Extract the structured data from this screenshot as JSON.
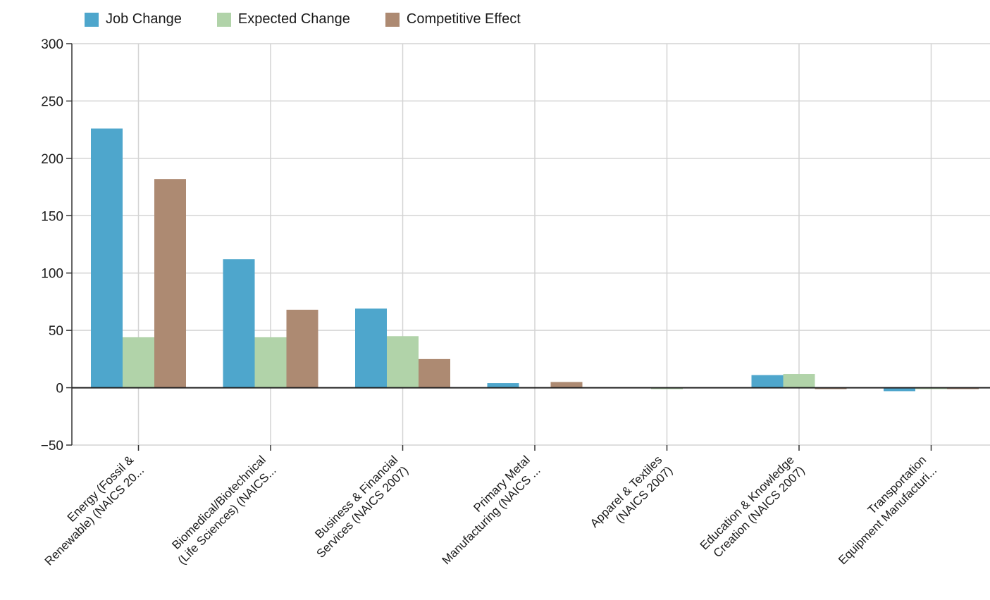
{
  "chart_data": {
    "type": "bar",
    "title": "",
    "xlabel": "",
    "ylabel": "",
    "ylim": [
      -50,
      300
    ],
    "yticks": [
      300,
      250,
      200,
      150,
      100,
      50,
      0,
      -50
    ],
    "grid": true,
    "legend_position": "top-left",
    "categories": [
      [
        "Energy (Fossil &",
        "Renewable) (NAICS 20..."
      ],
      [
        "Biomedical/Biotechnical",
        "(Life Sciences) (NAICS..."
      ],
      [
        "Business & Financial",
        "Services (NAICS 2007)"
      ],
      [
        "Primary Metal",
        "Manufacturing (NAICS ..."
      ],
      [
        "Apparel & Textiles",
        "(NAICS 2007)"
      ],
      [
        "Education & Knowledge",
        "Creation (NAICS 2007)"
      ],
      [
        "Transportation",
        "Equipment Manufacturi..."
      ]
    ],
    "series": [
      {
        "name": "Job Change",
        "color": "#4ea6cc",
        "values": [
          226,
          112,
          69,
          4,
          0,
          11,
          -3
        ]
      },
      {
        "name": "Expected Change",
        "color": "#b1d3a9",
        "values": [
          44,
          44,
          45,
          0,
          -1,
          12,
          -1
        ]
      },
      {
        "name": "Competitive Effect",
        "color": "#ad8a72",
        "values": [
          182,
          68,
          25,
          5,
          0,
          -1,
          -1
        ]
      }
    ]
  }
}
